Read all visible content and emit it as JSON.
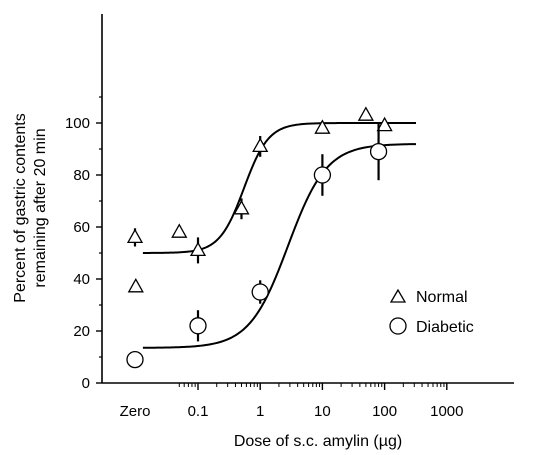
{
  "chart_data": {
    "type": "scatter",
    "title": "",
    "xlabel": "Dose of s.c. amylin (µg)",
    "ylabel": "Percent of gastric contents remaining after 20 min",
    "ylabel_lines": [
      "Percent of gastric contents",
      "remaining after 20 min"
    ],
    "x_scale": "log",
    "x_ticks": [
      "Zero",
      "0.1",
      "1",
      "10",
      "100",
      "1000"
    ],
    "y_ticks": [
      "0",
      "20",
      "40",
      "60",
      "80",
      "100"
    ],
    "ylim": [
      0,
      120
    ],
    "grid": false,
    "legend_position": "bottom-right",
    "series": [
      {
        "name": "Normal",
        "marker": "triangle",
        "points": [
          {
            "x": "Zero",
            "y": 56,
            "err": 3.5
          },
          {
            "x": 0.01,
            "y": 37
          },
          {
            "x": 0.05,
            "y": 58
          },
          {
            "x": 0.1,
            "y": 51,
            "err": 5
          },
          {
            "x": 0.5,
            "y": 67,
            "err": 4
          },
          {
            "x": 1,
            "y": 91,
            "err": 4
          },
          {
            "x": 10,
            "y": 98,
            "err": 2
          },
          {
            "x": 50,
            "y": 103
          },
          {
            "x": 100,
            "y": 99,
            "err": 2
          }
        ],
        "fit": {
          "bottom": 50,
          "top": 100,
          "ec50": 0.55,
          "hill": 2.2
        }
      },
      {
        "name": "Diabetic",
        "marker": "circle",
        "points": [
          {
            "x": "Zero",
            "y": 9
          },
          {
            "x": 0.1,
            "y": 22,
            "err": 6
          },
          {
            "x": 1,
            "y": 35,
            "err": 4.5
          },
          {
            "x": 10,
            "y": 80,
            "err": 8
          },
          {
            "x": 80,
            "y": 89,
            "err": 11
          }
        ],
        "fit": {
          "bottom": 13.5,
          "top": 92,
          "ec50": 2.8,
          "hill": 1.4
        }
      }
    ]
  }
}
